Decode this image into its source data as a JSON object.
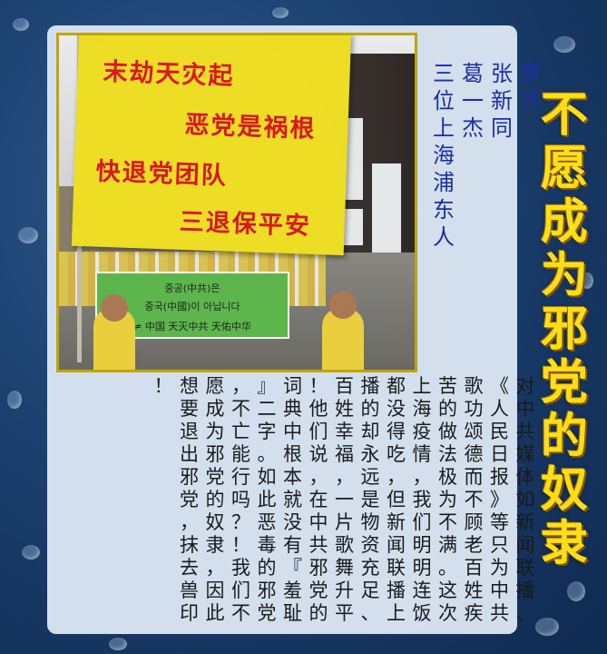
{
  "title": "不愿成为邪党的奴隶",
  "names": [
    "罗齐",
    "张新同",
    "葛一杰",
    "三位上海浦东人"
  ],
  "paragraphs": [
    "对中共媒体如新闻联播、《人民日报》等只为中共歌功颂德而不顾老百姓疾苦的做法极为不满。这次上海疫情，我们明明连饭都没得吃，但新闻联播上播的却永远是物资充足、百姓幸福，一片歌舞升平！他们说，在中共邪党的词典中根本就没有『羞耻』二字。如此恶毒的邪党，不亡能行吗？！我们不愿成为邪党的奴隶，因此想要退出邪党，抹去兽印！"
  ],
  "photo": {
    "banner_lines": [
      "末劫天灾起",
      "恶党是祸根",
      "快退党团队",
      "三退保平安"
    ],
    "green_banner_lines": [
      "중공(中共)은",
      "중국(中國)이 아닙니다",
      "≠ 中国  天灭中共  天佑中华"
    ]
  }
}
